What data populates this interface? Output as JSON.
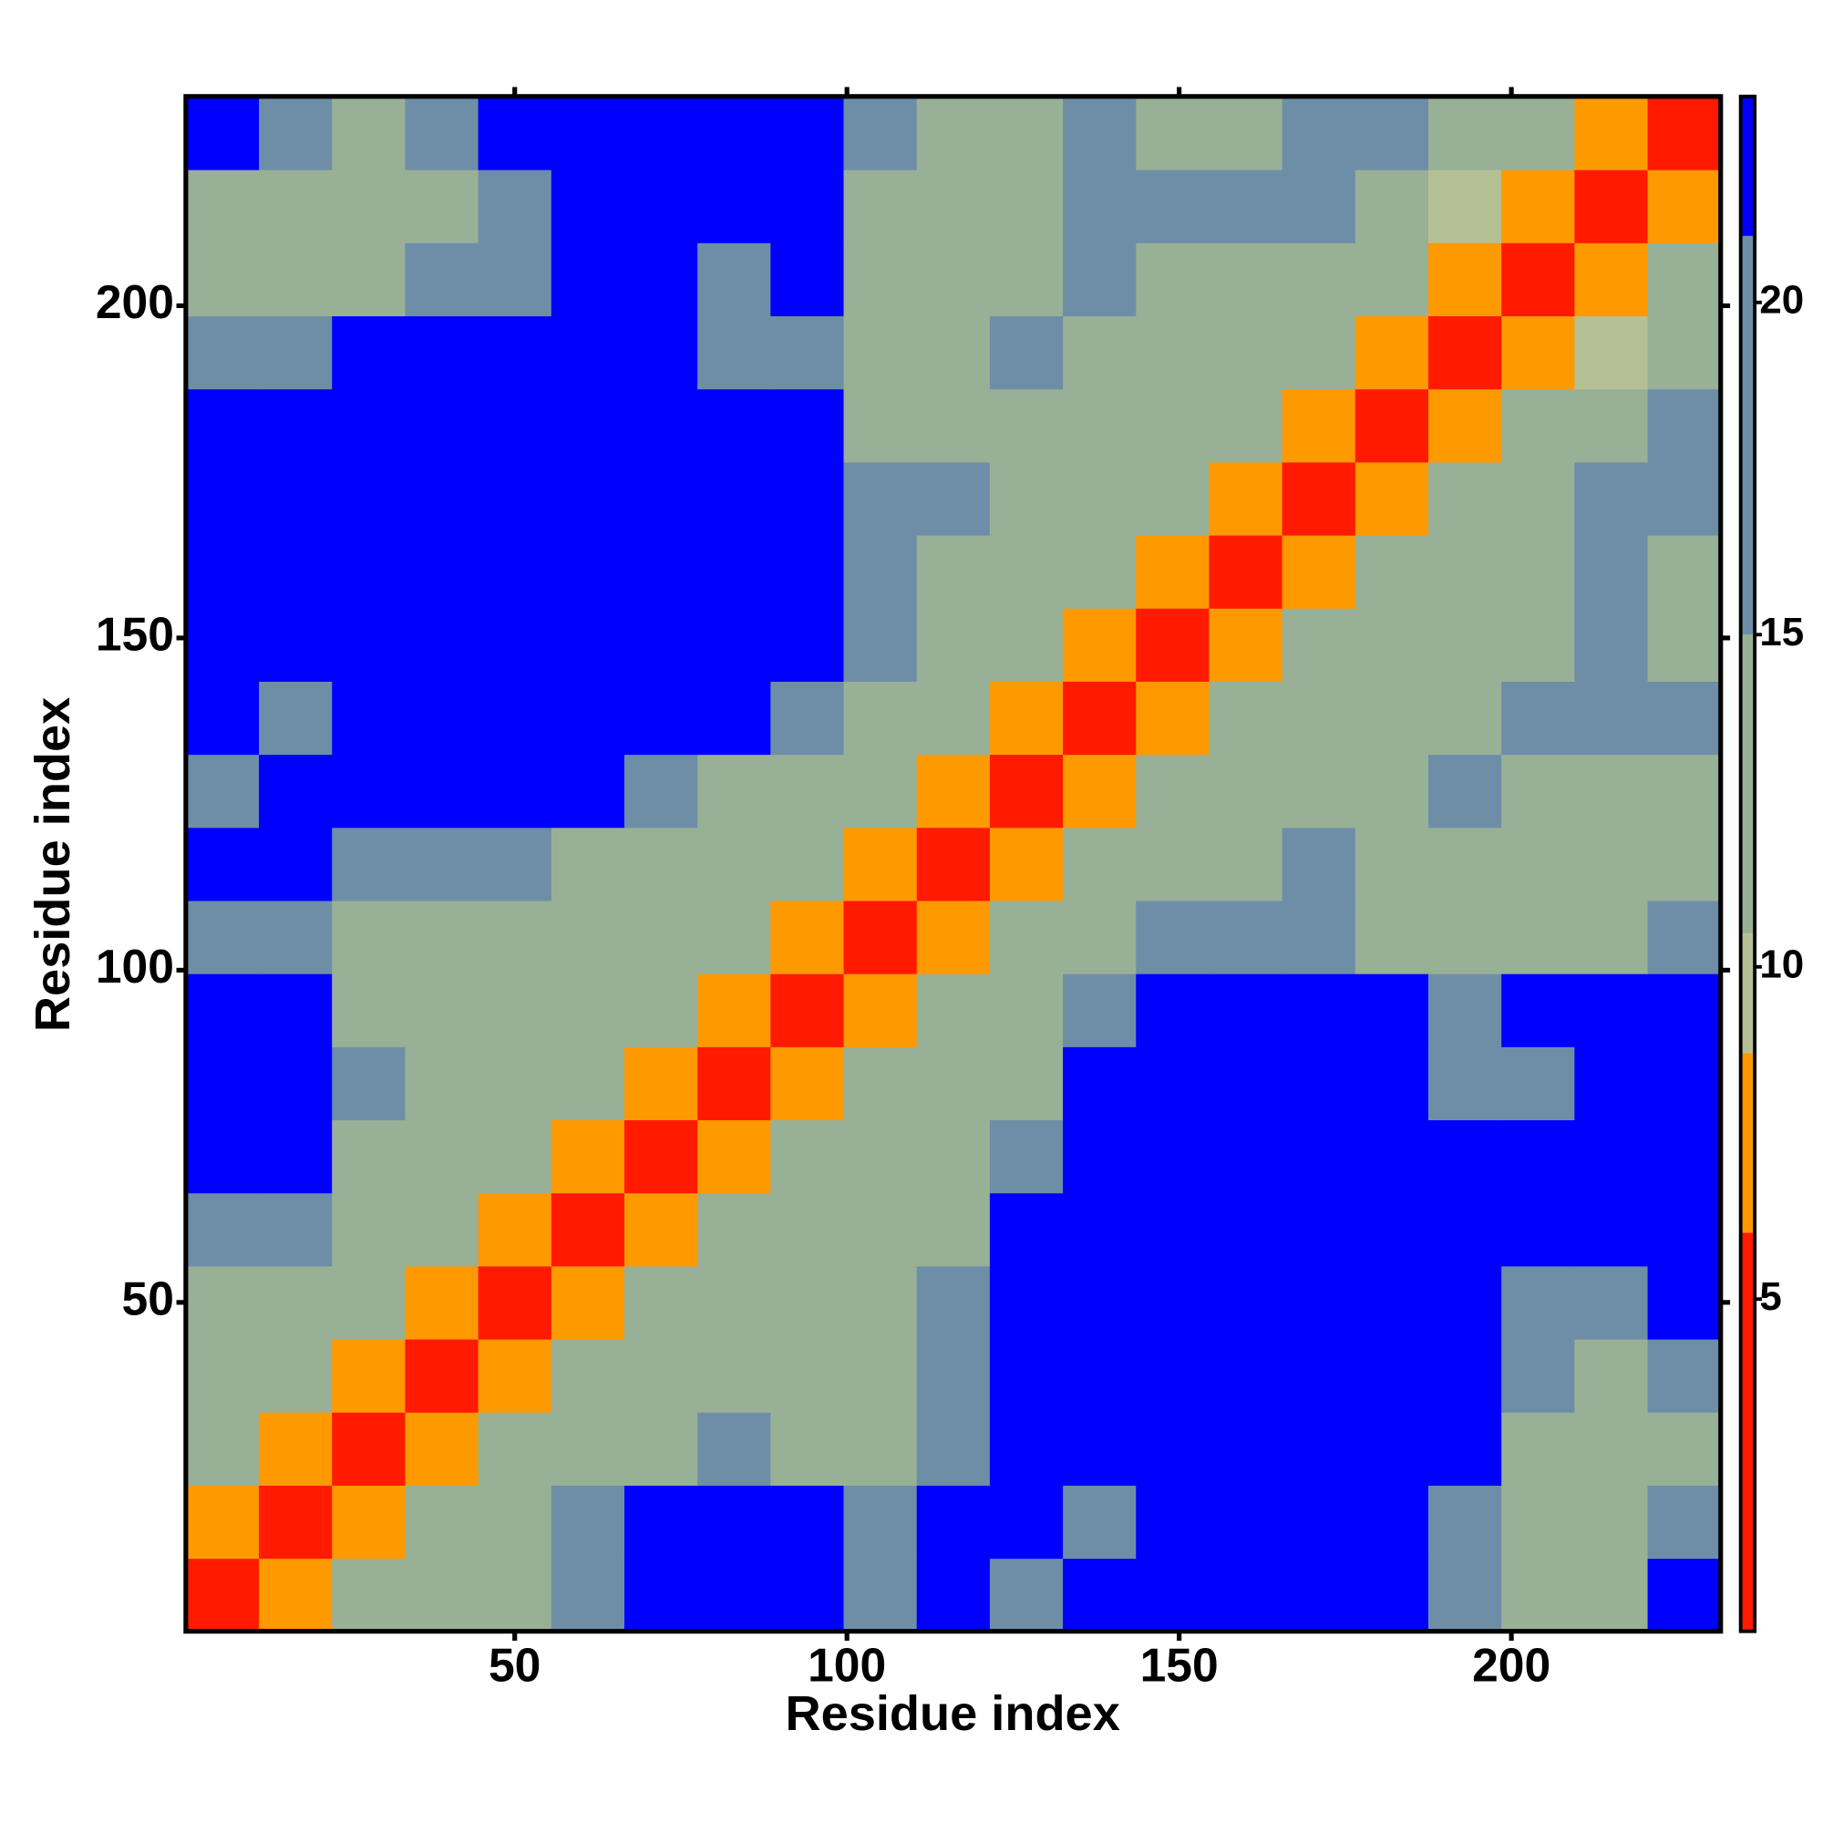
{
  "chart_data": {
    "type": "heatmap",
    "x_label": "Residue index",
    "y_label": "Residue index",
    "xlim": [
      0.5,
      231.5
    ],
    "ylim": [
      0.5,
      231.5
    ],
    "xticks": [
      50,
      100,
      150,
      200
    ],
    "yticks": [
      50,
      100,
      150,
      200
    ],
    "clim": [
      0,
      23.1
    ],
    "cticks": [
      5,
      10,
      15,
      20
    ],
    "colorbands": [
      {
        "from": 0,
        "to": 6,
        "color": "#ff1a00"
      },
      {
        "from": 6,
        "to": 8.7,
        "color": "#ff9900"
      },
      {
        "from": 8.7,
        "to": 10.5,
        "color": "#b4c094"
      },
      {
        "from": 10.5,
        "to": 15,
        "color": "#98b096"
      },
      {
        "from": 15,
        "to": 21,
        "color": "#6e8ea8"
      },
      {
        "from": 21,
        "to": 23.1,
        "color": "#0000ff"
      }
    ],
    "z": [
      [
        4,
        8,
        13,
        14,
        12,
        16,
        22,
        22,
        22,
        16,
        22,
        18,
        22,
        22,
        22,
        22,
        22,
        16,
        13,
        14,
        22
      ],
      [
        8,
        4,
        8,
        12,
        12,
        15,
        22,
        22,
        22,
        17,
        22,
        22,
        18,
        22,
        22,
        22,
        22,
        16,
        13,
        12,
        16
      ],
      [
        13,
        8,
        4,
        8,
        12,
        13,
        14,
        16,
        14,
        13,
        18,
        22,
        22,
        22,
        22,
        22,
        22,
        22,
        13,
        12,
        14
      ],
      [
        14,
        12,
        8,
        4,
        8,
        12,
        11,
        13,
        12,
        12,
        16,
        22,
        22,
        22,
        22,
        22,
        22,
        22,
        15,
        14,
        16
      ],
      [
        12,
        12,
        12,
        8,
        4,
        8,
        12,
        13,
        12,
        13,
        15,
        22,
        22,
        22,
        22,
        22,
        22,
        22,
        16,
        16,
        22
      ],
      [
        16,
        15,
        13,
        12,
        8,
        4,
        8,
        12,
        13,
        14,
        14,
        22,
        22,
        22,
        22,
        22,
        22,
        22,
        22,
        22,
        22
      ],
      [
        22,
        22,
        14,
        11,
        12,
        8,
        4,
        8,
        12,
        12,
        14,
        16,
        22,
        22,
        22,
        22,
        22,
        22,
        22,
        22,
        22
      ],
      [
        22,
        22,
        16,
        13,
        13,
        12,
        8,
        4,
        8,
        11,
        12,
        14,
        22,
        22,
        22,
        22,
        22,
        17,
        16,
        22,
        22
      ],
      [
        22,
        22,
        14,
        12,
        12,
        13,
        12,
        8,
        4,
        8,
        11,
        13,
        16,
        22,
        22,
        22,
        22,
        17,
        22,
        22,
        22
      ],
      [
        16,
        17,
        13,
        12,
        13,
        14,
        12,
        11,
        8,
        4,
        8,
        12,
        14,
        16,
        18,
        16,
        14,
        14,
        13,
        14,
        16
      ],
      [
        22,
        22,
        18,
        16,
        15,
        14,
        14,
        12,
        11,
        8,
        4,
        8,
        12,
        13,
        14,
        16,
        13,
        13,
        13,
        12,
        14
      ],
      [
        18,
        22,
        22,
        22,
        22,
        22,
        16,
        14,
        13,
        12,
        8,
        4,
        8,
        12,
        13,
        14,
        14,
        15,
        14,
        13,
        14
      ],
      [
        22,
        18,
        22,
        22,
        22,
        22,
        22,
        22,
        16,
        14,
        12,
        8,
        4,
        8,
        12,
        12,
        11,
        13,
        15,
        16,
        16
      ],
      [
        22,
        22,
        22,
        22,
        22,
        22,
        22,
        22,
        22,
        16,
        13,
        12,
        8,
        4,
        8,
        12,
        12,
        13,
        14,
        16,
        13
      ],
      [
        22,
        22,
        22,
        22,
        22,
        22,
        22,
        22,
        22,
        18,
        14,
        13,
        12,
        8,
        4,
        8,
        11,
        12,
        14,
        16,
        14
      ],
      [
        22,
        22,
        22,
        22,
        22,
        22,
        22,
        22,
        22,
        16,
        16,
        14,
        12,
        12,
        8,
        4,
        8,
        12,
        14,
        16,
        16
      ],
      [
        22,
        22,
        22,
        22,
        22,
        22,
        22,
        22,
        22,
        14,
        13,
        14,
        11,
        12,
        11,
        8,
        4,
        8,
        11,
        14,
        15
      ],
      [
        16,
        16,
        22,
        22,
        22,
        22,
        22,
        17,
        17,
        14,
        13,
        15,
        13,
        13,
        12,
        12,
        8,
        4,
        8,
        10,
        13
      ],
      [
        13,
        13,
        13,
        15,
        16,
        22,
        22,
        16,
        22,
        13,
        13,
        14,
        15,
        14,
        14,
        14,
        11,
        8,
        4,
        8,
        11
      ],
      [
        14,
        12,
        12,
        14,
        16,
        22,
        22,
        22,
        22,
        14,
        12,
        13,
        16,
        16,
        16,
        16,
        14,
        10,
        8,
        4,
        8
      ],
      [
        22,
        16,
        14,
        16,
        22,
        22,
        22,
        22,
        22,
        16,
        14,
        14,
        16,
        13,
        14,
        16,
        15,
        13,
        11,
        8,
        4
      ]
    ]
  }
}
